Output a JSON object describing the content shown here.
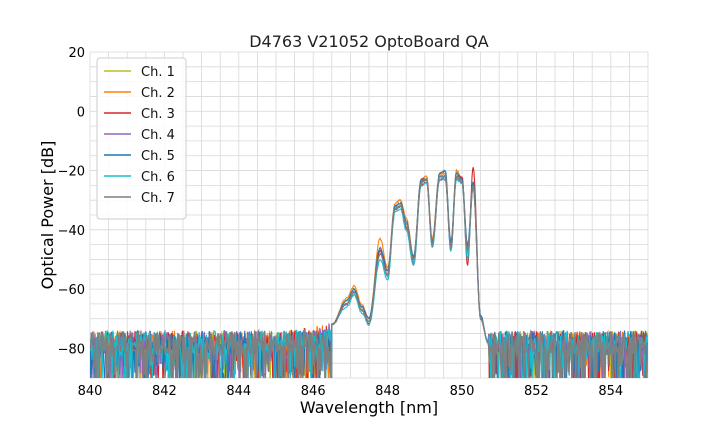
{
  "chart_data": {
    "type": "line",
    "title": "D4763 V21052 OptoBoard QA",
    "xlabel": "Wavelength [nm]",
    "ylabel": "Optical Power [dB]",
    "xlim": [
      840,
      855
    ],
    "ylim": [
      -90,
      20
    ],
    "xticks": [
      840,
      842,
      844,
      846,
      848,
      850,
      852,
      854
    ],
    "yticks": [
      -80,
      -60,
      -40,
      -20,
      0,
      20
    ],
    "grid": true,
    "legend_position": "upper-left",
    "noise_floor_db": -78,
    "series": [
      {
        "name": "Ch. 1",
        "color": "#bcbd22",
        "x": [
          846.5,
          846.9,
          847.1,
          847.3,
          847.5,
          847.8,
          848.0,
          848.2,
          848.35,
          848.5,
          848.7,
          848.9,
          849.05,
          849.2,
          849.4,
          849.55,
          849.7,
          849.85,
          850.0,
          850.15,
          850.3,
          850.5,
          850.7
        ],
        "y": [
          -72,
          -64,
          -60,
          -66,
          -71,
          -47,
          -55,
          -32,
          -31,
          -38,
          -50,
          -24,
          -23,
          -44,
          -22,
          -23,
          -45,
          -22,
          -24,
          -47,
          -26,
          -70,
          -78
        ]
      },
      {
        "name": "Ch. 2",
        "color": "#ff7f0e",
        "x": [
          846.5,
          846.9,
          847.1,
          847.3,
          847.5,
          847.8,
          848.0,
          848.2,
          848.35,
          848.5,
          848.7,
          848.9,
          849.05,
          849.2,
          849.4,
          849.55,
          849.7,
          849.85,
          850.0,
          850.15,
          850.3,
          850.5,
          850.7
        ],
        "y": [
          -72,
          -63,
          -59,
          -65,
          -70,
          -43,
          -53,
          -31,
          -30,
          -36,
          -49,
          -23,
          -22,
          -43,
          -21,
          -21,
          -46,
          -20,
          -23,
          -48,
          -25,
          -70,
          -78
        ]
      },
      {
        "name": "Ch. 3",
        "color": "#d62728",
        "x": [
          846.5,
          846.9,
          847.1,
          847.3,
          847.5,
          847.8,
          848.0,
          848.2,
          848.35,
          848.5,
          848.7,
          848.9,
          849.05,
          849.2,
          849.4,
          849.55,
          849.7,
          849.85,
          850.0,
          850.15,
          850.3,
          850.5,
          850.7
        ],
        "y": [
          -72,
          -65,
          -61,
          -67,
          -72,
          -47,
          -54,
          -33,
          -32,
          -39,
          -52,
          -25,
          -24,
          -45,
          -23,
          -22,
          -47,
          -22,
          -22,
          -52,
          -19,
          -70,
          -78
        ]
      },
      {
        "name": "Ch. 4",
        "color": "#9467bd",
        "x": [
          846.5,
          846.9,
          847.1,
          847.3,
          847.5,
          847.8,
          848.0,
          848.2,
          848.35,
          848.5,
          848.7,
          848.9,
          849.05,
          849.2,
          849.4,
          849.55,
          849.7,
          849.85,
          850.0,
          850.15,
          850.3,
          850.5,
          850.7
        ],
        "y": [
          -72,
          -65,
          -61,
          -67,
          -71,
          -48,
          -56,
          -33,
          -32,
          -40,
          -51,
          -24,
          -23,
          -45,
          -23,
          -23,
          -45,
          -23,
          -24,
          -46,
          -26,
          -69,
          -78
        ]
      },
      {
        "name": "Ch. 5",
        "color": "#1f77b4",
        "x": [
          846.5,
          846.9,
          847.1,
          847.3,
          847.5,
          847.8,
          848.0,
          848.2,
          848.35,
          848.5,
          848.7,
          848.9,
          849.05,
          849.2,
          849.4,
          849.55,
          849.7,
          849.85,
          850.0,
          850.15,
          850.3,
          850.5,
          850.7
        ],
        "y": [
          -72,
          -64,
          -60,
          -66,
          -70,
          -46,
          -54,
          -32,
          -31,
          -37,
          -49,
          -23,
          -23,
          -44,
          -21,
          -20,
          -44,
          -21,
          -23,
          -45,
          -24,
          -69,
          -78
        ]
      },
      {
        "name": "Ch. 6",
        "color": "#17becf",
        "x": [
          846.5,
          846.9,
          847.1,
          847.3,
          847.5,
          847.8,
          848.0,
          848.2,
          848.35,
          848.5,
          848.7,
          848.9,
          849.05,
          849.2,
          849.4,
          849.55,
          849.7,
          849.85,
          850.0,
          850.15,
          850.3,
          850.5,
          850.7
        ],
        "y": [
          -72,
          -66,
          -62,
          -68,
          -72,
          -50,
          -57,
          -34,
          -33,
          -40,
          -52,
          -25,
          -24,
          -46,
          -23,
          -22,
          -47,
          -23,
          -24,
          -50,
          -25,
          -70,
          -78
        ]
      },
      {
        "name": "Ch. 7",
        "color": "#7f7f7f",
        "x": [
          846.5,
          846.9,
          847.1,
          847.3,
          847.5,
          847.8,
          848.0,
          848.2,
          848.35,
          848.5,
          848.7,
          848.9,
          849.05,
          849.2,
          849.4,
          849.55,
          849.7,
          849.85,
          850.0,
          850.15,
          850.3,
          850.5,
          850.7
        ],
        "y": [
          -72,
          -65,
          -61,
          -67,
          -71,
          -48,
          -55,
          -33,
          -32,
          -38,
          -50,
          -24,
          -23,
          -45,
          -22,
          -22,
          -46,
          -22,
          -24,
          -47,
          -25,
          -70,
          -78
        ]
      }
    ]
  }
}
